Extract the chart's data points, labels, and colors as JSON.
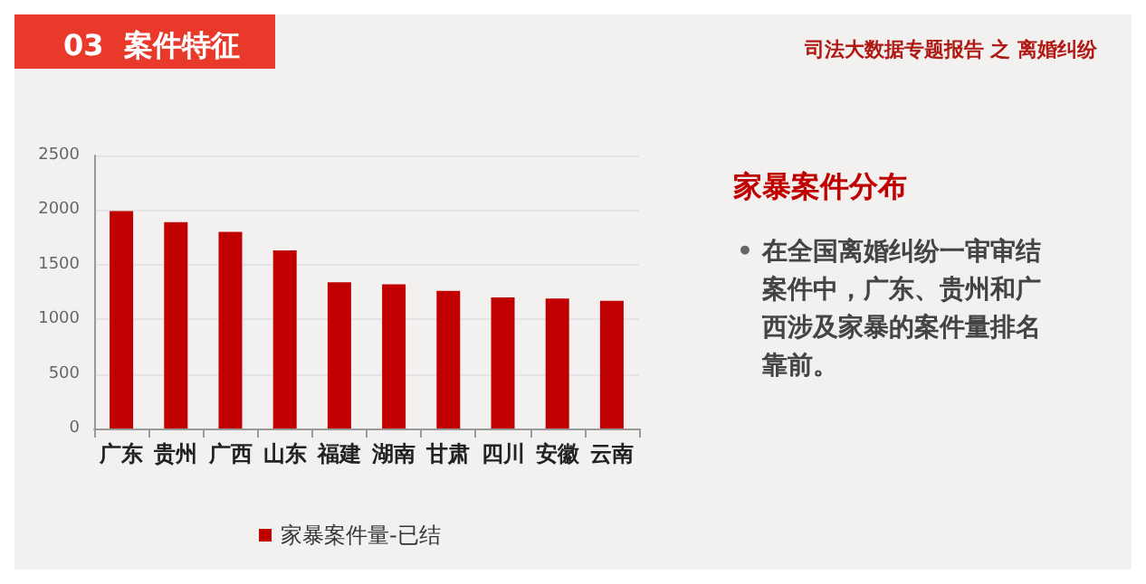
{
  "chart_data": {
    "type": "bar",
    "title": "03  案件特征",
    "subtitle": "司法大数据专题报告 之 离婚纠纷",
    "categories": [
      "广东",
      "贵州",
      "广西",
      "山东",
      "福建",
      "湖南",
      "甘肃",
      "四川",
      "安徽",
      "云南"
    ],
    "annotations": [
      "家暴案件分布",
      "•",
      "在全国离婚纠纷一审审结案件中，广东、贵州和广西涉及家暴的案件量排名靠前。"
    ],
    "series": [
      {
        "name": "家暴案件量-已结",
        "color": "#c00000",
        "values": [
          1990,
          1890,
          1800,
          1630,
          1340,
          1320,
          1260,
          1200,
          1190,
          1170
        ]
      }
    ],
    "ylim": [
      0,
      2500
    ],
    "yticks": [
      0,
      500,
      1000,
      1500,
      2000,
      2500
    ],
    "grid": "y",
    "legend": "bottom"
  }
}
